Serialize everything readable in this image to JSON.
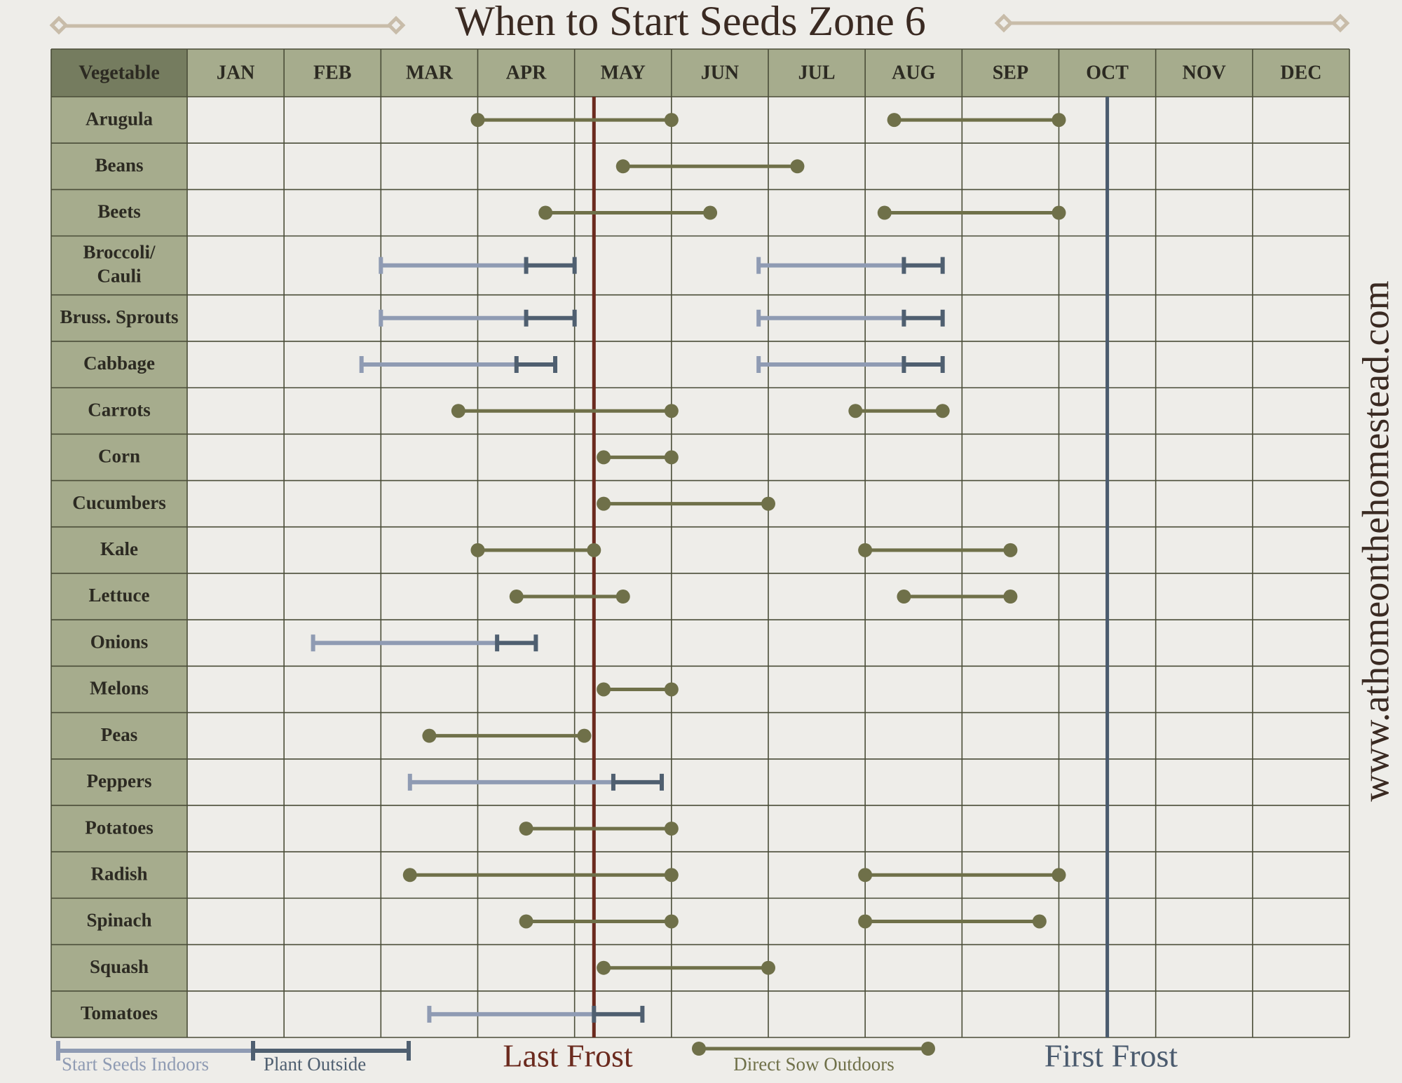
{
  "chart_data": {
    "type": "timeline",
    "title": "When to Start Seeds Zone 6",
    "header": "Vegetable",
    "categories": [
      "JAN",
      "FEB",
      "MAR",
      "APR",
      "MAY",
      "JUN",
      "JUL",
      "AUG",
      "SEP",
      "OCT",
      "NOV",
      "DEC"
    ],
    "xlim": [
      0,
      12
    ],
    "colors": {
      "sow": "#6f7049",
      "indoor": "#8f9bb3",
      "plant": "#4f5f70",
      "last_frost": "#6b2a1e",
      "first_frost": "#4b5b6e"
    },
    "rows": [
      {
        "name": "Arugula",
        "sow": [
          [
            3.0,
            5.0
          ],
          [
            7.3,
            9.0
          ]
        ]
      },
      {
        "name": "Beans",
        "sow": [
          [
            4.5,
            6.3
          ]
        ]
      },
      {
        "name": "Beets",
        "sow": [
          [
            3.7,
            5.4
          ],
          [
            7.2,
            9.0
          ]
        ]
      },
      {
        "name": "Broccoli/ Cauli",
        "indoor": [
          [
            2.0,
            3.5,
            4.0
          ],
          [
            5.9,
            7.4,
            7.8
          ]
        ]
      },
      {
        "name": "Bruss. Sprouts",
        "indoor": [
          [
            2.0,
            3.5,
            4.0
          ],
          [
            5.9,
            7.4,
            7.8
          ]
        ]
      },
      {
        "name": "Cabbage",
        "indoor": [
          [
            1.8,
            3.4,
            3.8
          ],
          [
            5.9,
            7.4,
            7.8
          ]
        ]
      },
      {
        "name": "Carrots",
        "sow": [
          [
            2.8,
            5.0
          ],
          [
            6.9,
            7.8
          ]
        ]
      },
      {
        "name": "Corn",
        "sow": [
          [
            4.3,
            5.0
          ]
        ]
      },
      {
        "name": "Cucumbers",
        "sow": [
          [
            4.3,
            6.0
          ]
        ]
      },
      {
        "name": "Kale",
        "sow": [
          [
            3.0,
            4.2
          ],
          [
            7.0,
            8.5
          ]
        ]
      },
      {
        "name": "Lettuce",
        "sow": [
          [
            3.4,
            4.5
          ],
          [
            7.4,
            8.5
          ]
        ]
      },
      {
        "name": "Onions",
        "indoor": [
          [
            1.3,
            3.2,
            3.6
          ]
        ]
      },
      {
        "name": "Melons",
        "sow": [
          [
            4.3,
            5.0
          ]
        ]
      },
      {
        "name": "Peas",
        "sow": [
          [
            2.5,
            4.1
          ]
        ]
      },
      {
        "name": "Peppers",
        "indoor": [
          [
            2.3,
            4.4,
            4.9
          ]
        ]
      },
      {
        "name": "Potatoes",
        "sow": [
          [
            3.5,
            5.0
          ]
        ]
      },
      {
        "name": "Radish",
        "sow": [
          [
            2.3,
            5.0
          ],
          [
            7.0,
            9.0
          ]
        ]
      },
      {
        "name": "Spinach",
        "sow": [
          [
            3.5,
            5.0
          ],
          [
            7.0,
            8.8
          ]
        ]
      },
      {
        "name": "Squash",
        "sow": [
          [
            4.3,
            6.0
          ]
        ]
      },
      {
        "name": "Tomatoes",
        "indoor": [
          [
            2.5,
            4.2,
            4.7
          ]
        ]
      }
    ],
    "last_frost": {
      "label": "Last Frost",
      "value": 4.2
    },
    "first_frost": {
      "label": "First Frost",
      "value": 9.5
    },
    "legend": {
      "indoor": "Start Seeds Indoors",
      "plant": "Plant Outside",
      "sow": "Direct Sow Outdoors"
    },
    "website": "www.athomeonthehomestead.com"
  }
}
